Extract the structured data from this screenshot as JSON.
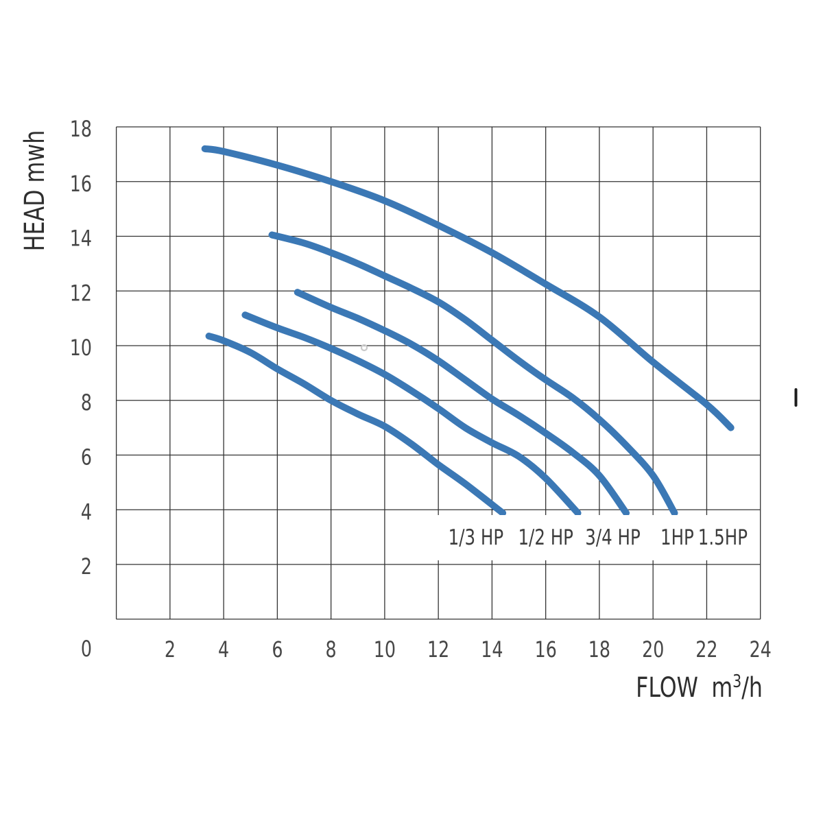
{
  "page": {
    "background": "#ffffff"
  },
  "axes": {
    "y": {
      "title": "HEAD mwh",
      "ticks": [
        18,
        16,
        14,
        12,
        10,
        8,
        6,
        4,
        2
      ],
      "range": [
        0,
        18
      ]
    },
    "x": {
      "title": {
        "text": "FLOW",
        "unit_base": "m",
        "unit_sup": "3",
        "unit_rest": "/h"
      },
      "ticks": [
        2,
        4,
        6,
        8,
        10,
        12,
        14,
        16,
        18,
        20,
        22,
        24
      ],
      "range": [
        0,
        24
      ]
    },
    "origin_label": "0"
  },
  "chart_data": {
    "type": "line",
    "title": "",
    "xlabel": "FLOW m3/h",
    "ylabel": "HEAD mwh",
    "xlim": [
      0,
      24
    ],
    "ylim": [
      0,
      18
    ],
    "x_tick_step": 2,
    "y_tick_step": 2,
    "grid": true,
    "legend_position": "inside-bottom",
    "series": [
      {
        "name": "1/3 HP",
        "label_pos": [
          13.4,
          3.0
        ],
        "points": [
          [
            3.45,
            10.35
          ],
          [
            4,
            10.18
          ],
          [
            5,
            9.75
          ],
          [
            6,
            9.15
          ],
          [
            7,
            8.6
          ],
          [
            8,
            8.0
          ],
          [
            9,
            7.5
          ],
          [
            10,
            7.05
          ],
          [
            11,
            6.4
          ],
          [
            12,
            5.65
          ],
          [
            13,
            4.95
          ],
          [
            14.4,
            3.88
          ]
        ]
      },
      {
        "name": "1/2 HP",
        "label_pos": [
          16.0,
          3.0
        ],
        "points": [
          [
            4.8,
            11.12
          ],
          [
            6,
            10.65
          ],
          [
            7,
            10.3
          ],
          [
            8,
            9.9
          ],
          [
            9,
            9.45
          ],
          [
            10,
            8.95
          ],
          [
            11,
            8.35
          ],
          [
            12,
            7.7
          ],
          [
            13,
            7.0
          ],
          [
            14,
            6.45
          ],
          [
            15,
            5.95
          ],
          [
            16,
            5.15
          ],
          [
            17.2,
            3.88
          ]
        ]
      },
      {
        "name": "3/4 HP",
        "label_pos": [
          18.5,
          3.0
        ],
        "points": [
          [
            6.75,
            11.95
          ],
          [
            8,
            11.4
          ],
          [
            9,
            11.0
          ],
          [
            10,
            10.55
          ],
          [
            11,
            10.05
          ],
          [
            12,
            9.45
          ],
          [
            13,
            8.75
          ],
          [
            14,
            8.05
          ],
          [
            15,
            7.45
          ],
          [
            16,
            6.8
          ],
          [
            17,
            6.1
          ],
          [
            18,
            5.25
          ],
          [
            19,
            3.88
          ]
        ]
      },
      {
        "name": "1HP",
        "label_pos": [
          20.9,
          3.0
        ],
        "points": [
          [
            5.8,
            14.05
          ],
          [
            7,
            13.75
          ],
          [
            8,
            13.4
          ],
          [
            9,
            13.0
          ],
          [
            10,
            12.55
          ],
          [
            11,
            12.1
          ],
          [
            12,
            11.6
          ],
          [
            13,
            10.95
          ],
          [
            14,
            10.2
          ],
          [
            15,
            9.45
          ],
          [
            16,
            8.75
          ],
          [
            17,
            8.1
          ],
          [
            18,
            7.3
          ],
          [
            19,
            6.35
          ],
          [
            20,
            5.25
          ],
          [
            20.8,
            3.88
          ]
        ]
      },
      {
        "name": "1.5HP",
        "label_pos": [
          22.6,
          3.0
        ],
        "points": [
          [
            3.3,
            17.2
          ],
          [
            4,
            17.1
          ],
          [
            6,
            16.6
          ],
          [
            8,
            16.0
          ],
          [
            10,
            15.3
          ],
          [
            12,
            14.4
          ],
          [
            14,
            13.4
          ],
          [
            16,
            12.25
          ],
          [
            18,
            11.05
          ],
          [
            20,
            9.4
          ],
          [
            22,
            7.85
          ],
          [
            22.9,
            7.0
          ]
        ]
      }
    ]
  },
  "colors": {
    "curve": "#3B78B5",
    "grid": "#333333",
    "tick_text": "#474747",
    "title_text": "#2e2e2e",
    "hp_label_text": "#3d3d3d"
  }
}
